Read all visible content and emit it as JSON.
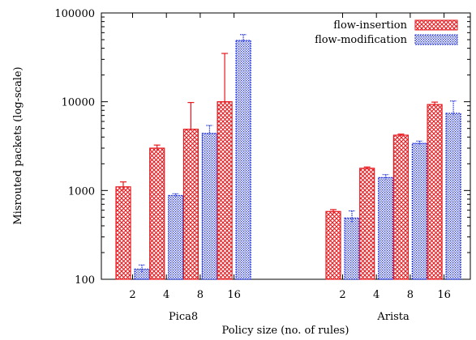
{
  "chart_data": {
    "type": "bar",
    "title": "",
    "xlabel": "Policy size (no. of rules)",
    "ylabel": "Misrouted packets (log-scale)",
    "yscale": "log",
    "ylim": [
      100,
      100000
    ],
    "yticks": [
      100,
      1000,
      10000,
      100000
    ],
    "ytick_labels": [
      "100",
      "1000",
      "10000",
      "100000"
    ],
    "grid": false,
    "legend_position": "top-right",
    "groups": [
      {
        "name": "Pica8",
        "categories": [
          "2",
          "4",
          "8",
          "16"
        ],
        "series": [
          {
            "name": "flow-insertion",
            "values": [
              1100,
              3000,
              4900,
              10000
            ],
            "error_high": [
              1250,
              3250,
              9800,
              35000
            ],
            "error_low": [
              1000,
              2800,
              4900,
              10000
            ]
          },
          {
            "name": "flow-modification",
            "values": [
              130,
              880,
              4400,
              49000
            ],
            "error_high": [
              145,
              920,
              5400,
              57000
            ],
            "error_low": [
              120,
              860,
              4200,
              47000
            ]
          }
        ]
      },
      {
        "name": "Arista",
        "categories": [
          "2",
          "4",
          "8",
          "16"
        ],
        "series": [
          {
            "name": "flow-insertion",
            "values": [
              580,
              1780,
              4200,
              9300
            ],
            "error_high": [
              610,
              1840,
              4320,
              9900
            ],
            "error_low": [
              555,
              1730,
              4100,
              9000
            ]
          },
          {
            "name": "flow-modification",
            "values": [
              490,
              1400,
              3400,
              7400
            ],
            "error_high": [
              590,
              1510,
              3600,
              10200
            ],
            "error_low": [
              440,
              1330,
              3280,
              7000
            ]
          }
        ]
      }
    ],
    "series_styles": [
      {
        "name": "flow-insertion",
        "color": "#e8191e",
        "pattern": "crosshatch"
      },
      {
        "name": "flow-modification",
        "color": "#2233dd",
        "pattern": "dots"
      }
    ]
  }
}
